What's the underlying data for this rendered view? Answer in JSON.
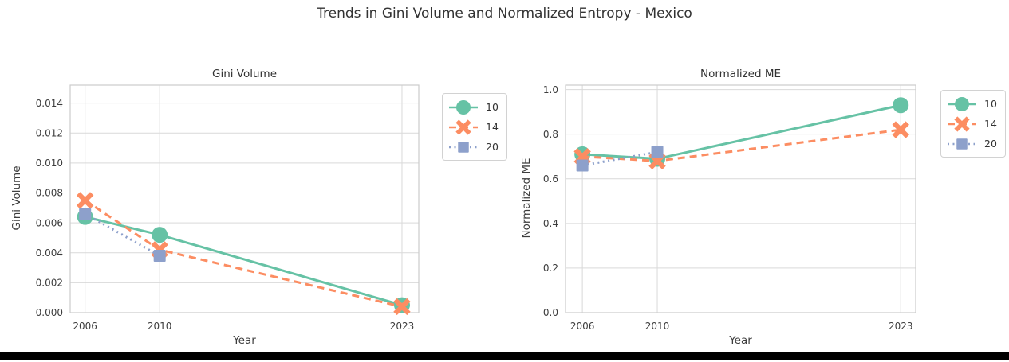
{
  "figure": {
    "title": "Trends in Gini Volume and Normalized Entropy - Mexico"
  },
  "colors": {
    "background": "#ffffff",
    "grid": "#d9d9d9",
    "axes_edge": "#cccccc",
    "text": "#333333",
    "series_green": "#66c2a5",
    "series_orange": "#fc8d62",
    "series_purple": "#8da0cb",
    "bottom_bar": "#000000"
  },
  "chart_data": [
    {
      "type": "line",
      "title": "Gini Volume",
      "xlabel": "Year",
      "ylabel": "Gini Volume",
      "x": [
        2006,
        2010,
        2023
      ],
      "xlim": [
        2005.2,
        2023.9
      ],
      "ylim": [
        0,
        0.0152
      ],
      "grid": true,
      "legend_position": "outside top-right",
      "xticks": {
        "values": [
          2006,
          2010,
          2023
        ],
        "labels": [
          "2006",
          "2010",
          "2023"
        ]
      },
      "yticks": {
        "values": [
          0.0,
          0.002,
          0.004,
          0.006,
          0.008,
          0.01,
          0.012,
          0.014
        ],
        "labels": [
          "0.000",
          "0.002",
          "0.004",
          "0.006",
          "0.008",
          "0.010",
          "0.012",
          "0.014"
        ]
      },
      "series": [
        {
          "name": "10",
          "color": "#66c2a5",
          "marker": "circle",
          "line": "solid",
          "values": [
            0.0064,
            0.0052,
            0.0005
          ]
        },
        {
          "name": "14",
          "color": "#fc8d62",
          "marker": "X",
          "line": "dashed",
          "values": [
            0.0075,
            0.0042,
            0.0004
          ]
        },
        {
          "name": "20",
          "color": "#8da0cb",
          "marker": "square",
          "line": "dotted",
          "values": [
            0.0066,
            0.0038,
            null
          ]
        }
      ]
    },
    {
      "type": "line",
      "title": "Normalized ME",
      "xlabel": "Year",
      "ylabel": "Normalized ME",
      "x": [
        2006,
        2010,
        2023
      ],
      "xlim": [
        2005.1,
        2023.8
      ],
      "ylim": [
        0,
        1.02
      ],
      "grid": true,
      "legend_position": "outside top-right",
      "xticks": {
        "values": [
          2006,
          2010,
          2023
        ],
        "labels": [
          "2006",
          "2010",
          "2023"
        ]
      },
      "yticks": {
        "values": [
          0.0,
          0.2,
          0.4,
          0.6,
          0.8,
          1.0
        ],
        "labels": [
          "0.0",
          "0.2",
          "0.4",
          "0.6",
          "0.8",
          "1.0"
        ]
      },
      "series": [
        {
          "name": "10",
          "color": "#66c2a5",
          "marker": "circle",
          "line": "solid",
          "values": [
            0.71,
            0.69,
            0.93
          ]
        },
        {
          "name": "14",
          "color": "#fc8d62",
          "marker": "X",
          "line": "dashed",
          "values": [
            0.7,
            0.68,
            0.82
          ]
        },
        {
          "name": "20",
          "color": "#8da0cb",
          "marker": "square",
          "line": "dotted",
          "values": [
            0.66,
            0.72,
            null
          ]
        }
      ]
    }
  ]
}
